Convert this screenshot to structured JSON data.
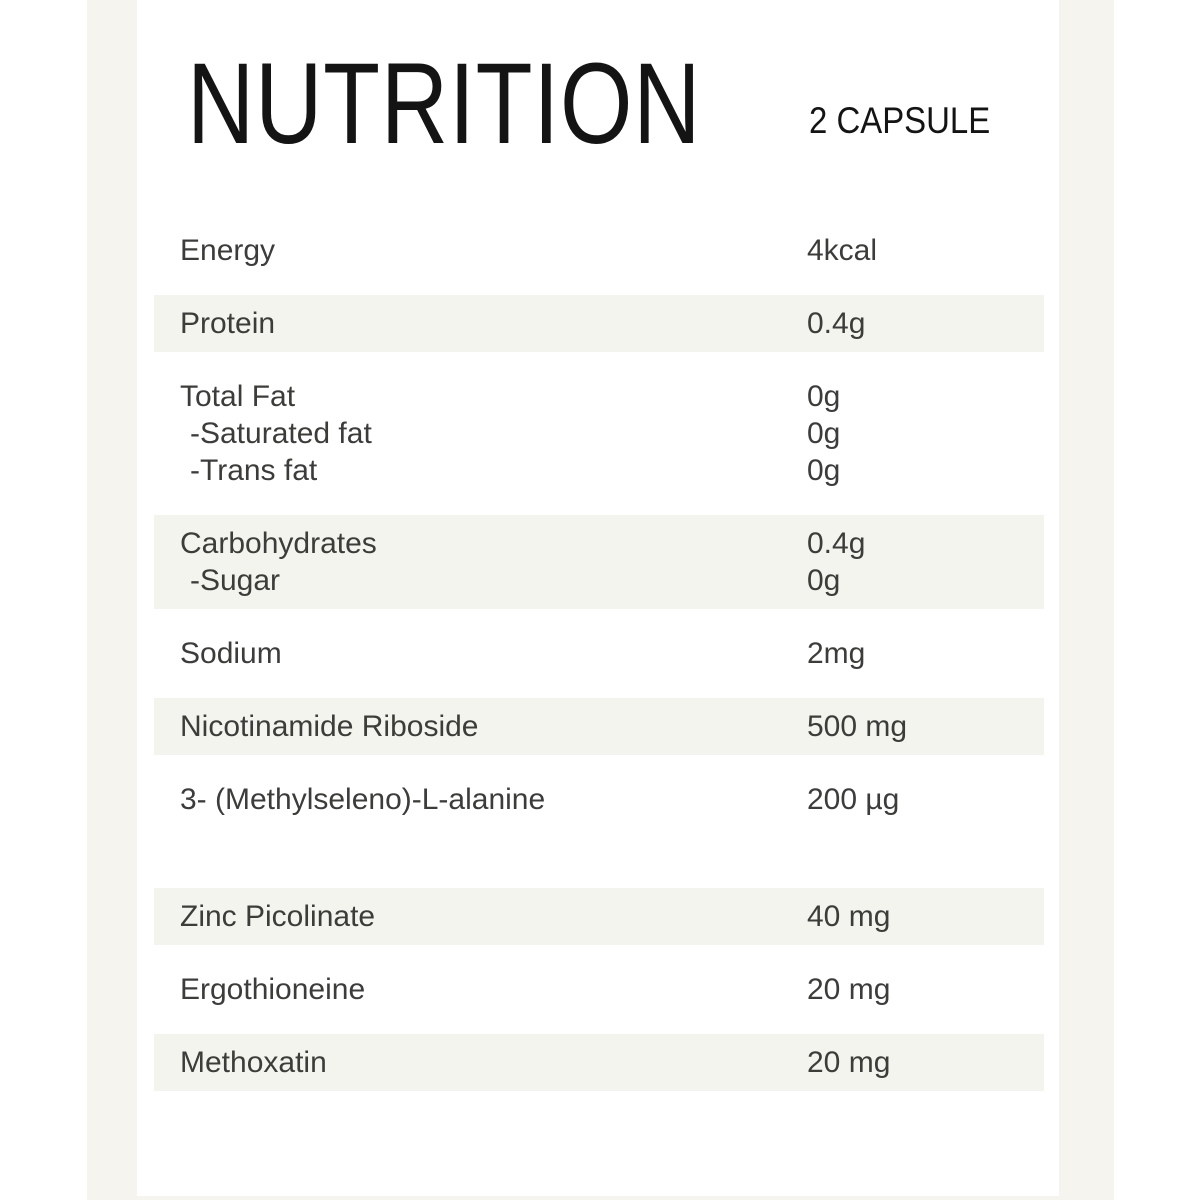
{
  "header": {
    "title": "NUTRITION",
    "serving": "2 CAPSULE"
  },
  "colors": {
    "background": "#ffffff",
    "frame": "#f5f4ee",
    "row_shade": "#f4f4ee",
    "text": "#3c3c3a",
    "title_color": "#141414"
  },
  "table": {
    "rows": [
      {
        "shaded": false,
        "lines": [
          {
            "label": "Energy",
            "value": "4kcal"
          }
        ]
      },
      {
        "shaded": true,
        "lines": [
          {
            "label": "Protein",
            "value": "0.4g"
          }
        ]
      },
      {
        "shaded": false,
        "lines": [
          {
            "label": "Total Fat",
            "value": "0g"
          },
          {
            "label": "-Saturated fat",
            "value": "0g"
          },
          {
            "label": "-Trans fat",
            "value": "0g"
          }
        ]
      },
      {
        "shaded": true,
        "lines": [
          {
            "label": "Carbohydrates",
            "value": "0.4g"
          },
          {
            "label": "-Sugar",
            "value": "0g"
          }
        ]
      },
      {
        "shaded": false,
        "lines": [
          {
            "label": "Sodium",
            "value": "2mg"
          }
        ]
      },
      {
        "shaded": true,
        "lines": [
          {
            "label": "Nicotinamide Riboside",
            "value": "500 mg"
          }
        ]
      },
      {
        "shaded": false,
        "lines": [
          {
            "label": "3- (Methylseleno)-L-alanine",
            "value": "200 µg"
          }
        ]
      },
      {
        "shaded": true,
        "lines": [
          {
            "label": "Zinc Picolinate",
            "value": "40 mg"
          }
        ]
      },
      {
        "shaded": false,
        "lines": [
          {
            "label": "Ergothioneine",
            "value": "20 mg"
          }
        ]
      },
      {
        "shaded": true,
        "lines": [
          {
            "label": "Methoxatin",
            "value": "20 mg"
          }
        ]
      }
    ]
  }
}
